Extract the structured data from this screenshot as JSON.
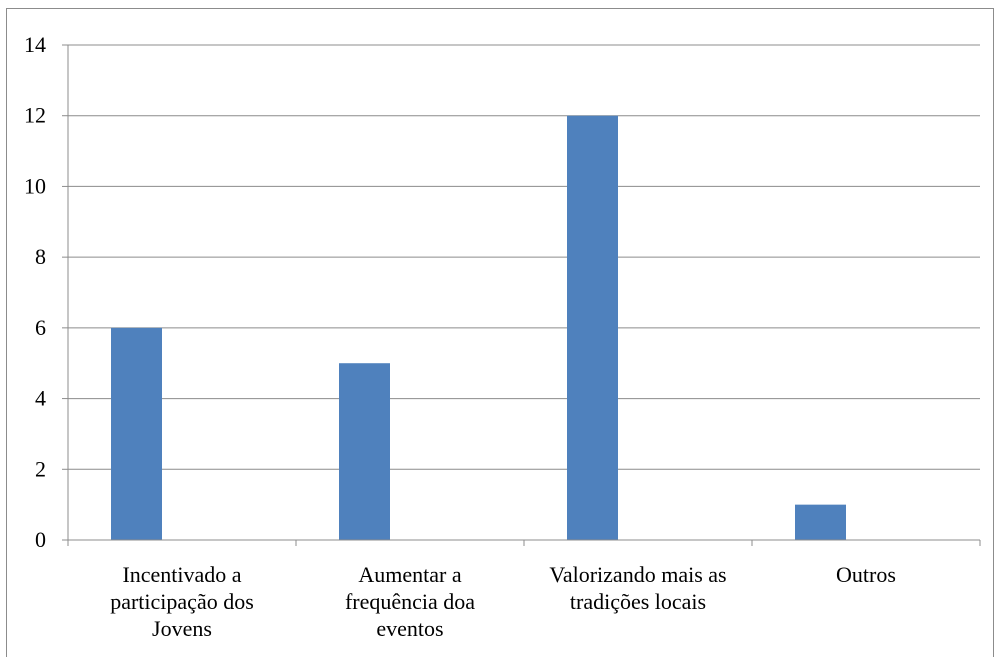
{
  "chart_data": {
    "type": "bar",
    "categories": [
      [
        "Incentivado a",
        "participação dos",
        "Jovens"
      ],
      [
        "Aumentar a",
        "frequência doa",
        "eventos"
      ],
      [
        "Valorizando mais as",
        "tradições locais"
      ],
      [
        "Outros"
      ]
    ],
    "values": [
      6,
      5,
      12,
      1
    ],
    "ylim": [
      0,
      14
    ],
    "yticks": [
      0,
      2,
      4,
      6,
      8,
      10,
      12,
      14
    ],
    "grid": true,
    "legend": "none",
    "title": "",
    "xlabel": "",
    "ylabel": "",
    "colors": {
      "bar": "#4f81bd",
      "grid": "#8c8c8c",
      "axis": "#8c8c8c"
    }
  }
}
